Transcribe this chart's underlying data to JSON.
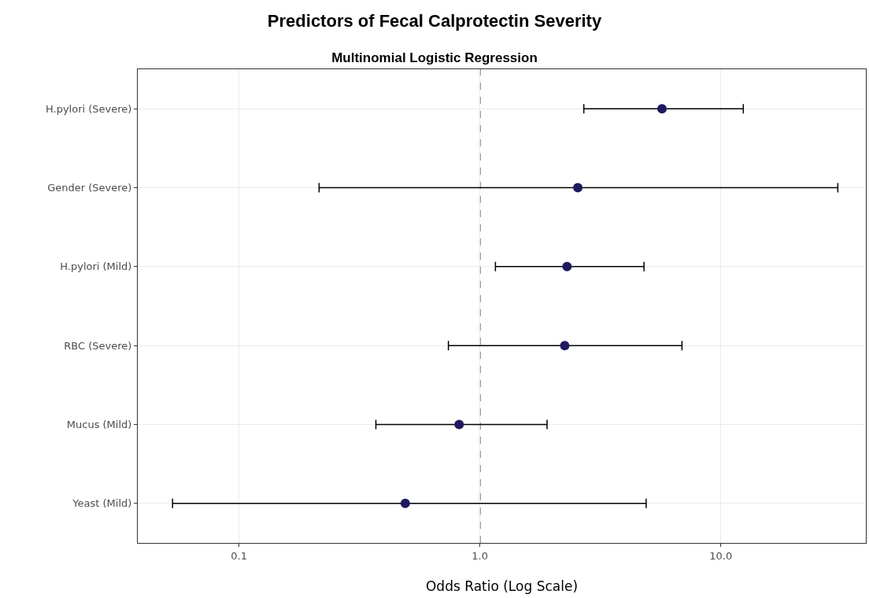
{
  "chart_data": {
    "type": "scatter",
    "orientation": "horizontal",
    "title": "Predictors of Fecal Calprotectin Severity",
    "subtitle": "Multinomial Logistic Regression",
    "xlabel": "Odds Ratio (Log Scale)",
    "categories": [
      "H.pylori (Severe)",
      "Gender (Severe)",
      "H.pylori (Mild)",
      "RBC (Severe)",
      "Mucus (Mild)",
      "Yeast (Mild)"
    ],
    "series": [
      {
        "color": "#1f1a5e",
        "values": [
          5.7,
          2.55,
          2.3,
          2.25,
          0.82,
          0.49
        ],
        "errors": [
          [
            2.7,
            12.4
          ],
          [
            0.215,
            30.6
          ],
          [
            1.16,
            4.8
          ],
          [
            0.74,
            6.9
          ],
          [
            0.37,
            1.9
          ],
          [
            0.053,
            4.9
          ]
        ]
      }
    ],
    "log": "x",
    "xlim": [
      0.038,
      40
    ],
    "xticks": [
      {
        "value": 0.1,
        "label": "0.1"
      },
      {
        "value": 1,
        "label": "1.0"
      },
      {
        "value": 10,
        "label": "10.0"
      }
    ],
    "grid": true,
    "marker": "circle",
    "ref_lines": [
      {
        "axis": "x",
        "value": 1,
        "line_style": "dashed",
        "color": "#000000"
      }
    ]
  }
}
